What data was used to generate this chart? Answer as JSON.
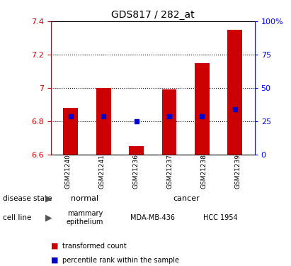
{
  "title": "GDS817 / 282_at",
  "samples": [
    "GSM21240",
    "GSM21241",
    "GSM21236",
    "GSM21237",
    "GSM21238",
    "GSM21239"
  ],
  "bar_values": [
    6.88,
    7.0,
    6.65,
    6.99,
    7.15,
    7.35
  ],
  "bar_base": 6.6,
  "percentile_values": [
    6.83,
    6.83,
    6.8,
    6.83,
    6.83,
    6.87
  ],
  "ylim": [
    6.6,
    7.4
  ],
  "yticks": [
    6.6,
    6.8,
    7.0,
    7.2,
    7.4
  ],
  "ytick_labels": [
    "6.6",
    "6.8",
    "7",
    "7.2",
    "7.4"
  ],
  "y2ticks_pct": [
    0,
    25,
    50,
    75,
    100
  ],
  "y2labels": [
    "0",
    "25",
    "50",
    "75",
    "100%"
  ],
  "bar_color": "#cc0000",
  "percentile_color": "#0000cc",
  "dotted_lines": [
    6.8,
    7.0,
    7.2
  ],
  "normal_bg": "#aaffaa",
  "cancer_bg": "#33dd33",
  "mammary_bg": "#eeeeee",
  "mda_bg": "#ee77ee",
  "hcc_bg": "#ee77ee",
  "sample_bg": "#cccccc",
  "bar_width": 0.45
}
